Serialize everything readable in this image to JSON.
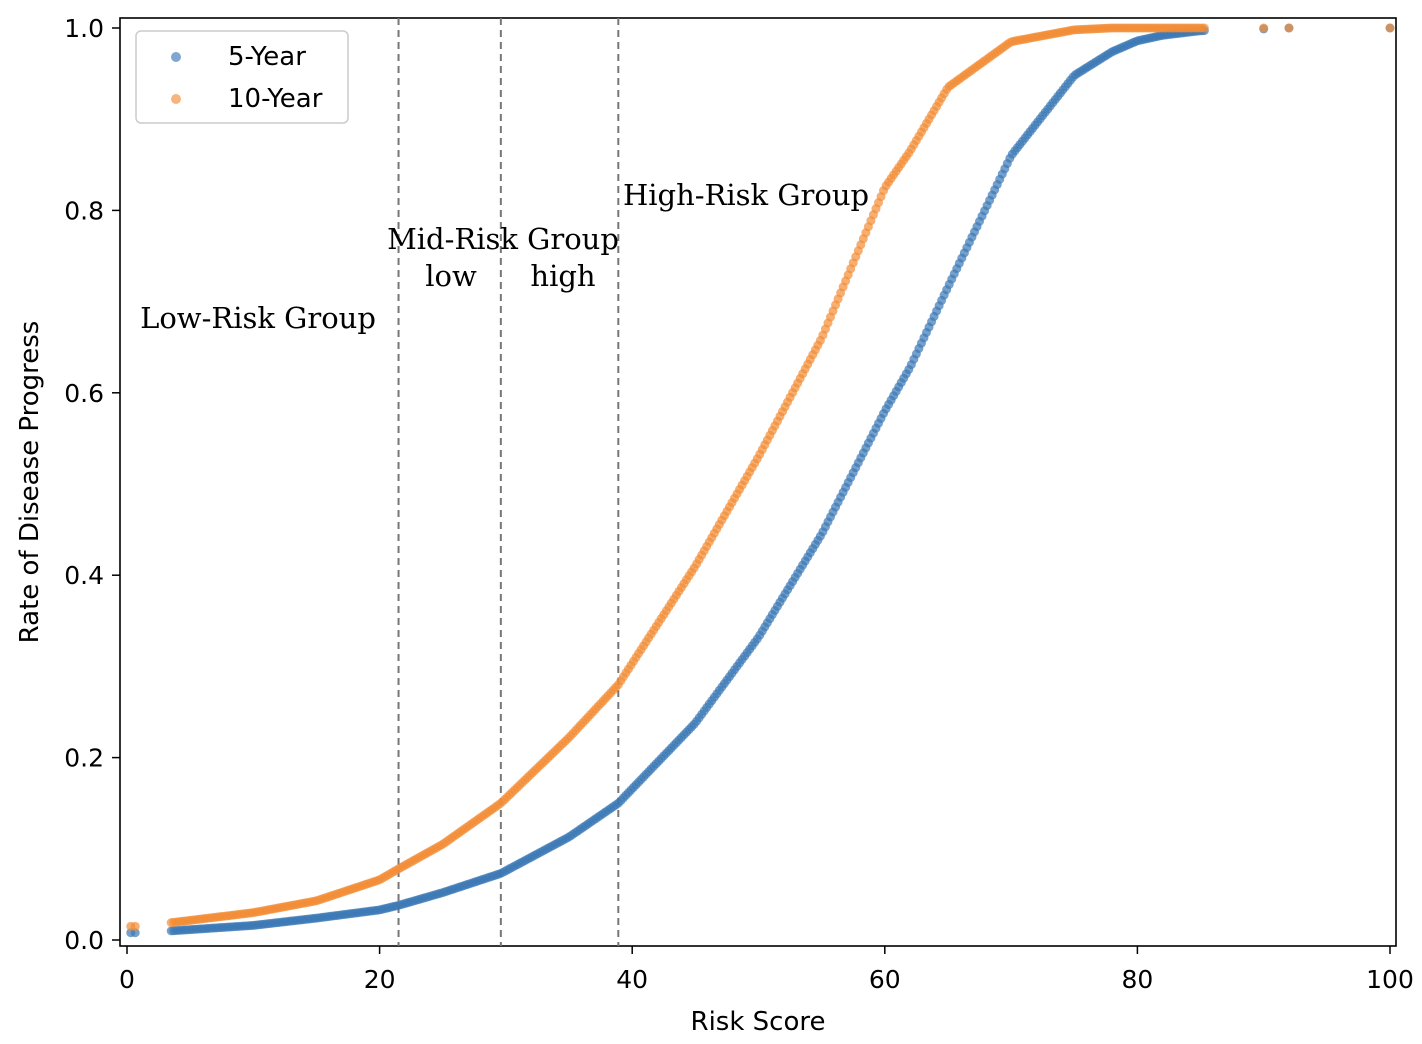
{
  "chart_data": {
    "type": "scatter",
    "title": "",
    "xlabel": "Risk Score",
    "ylabel": "Rate of Disease Progress",
    "xlim": [
      0,
      100
    ],
    "ylim": [
      0,
      1.0
    ],
    "xticks": [
      "0",
      "20",
      "40",
      "60",
      "80",
      "100"
    ],
    "yticks": [
      "0.0",
      "0.2",
      "0.4",
      "0.6",
      "0.8",
      "1.0"
    ],
    "grid": false,
    "legend_position": "top-left",
    "cutoffs": [
      21.5,
      29.6,
      38.9
    ],
    "annotations": {
      "low_risk": "Low-Risk Group",
      "mid_risk": "Mid-Risk Group",
      "mid_low": "low",
      "mid_high": "high",
      "high_risk": "High-Risk Group"
    },
    "series": [
      {
        "name": "5-Year",
        "color": "#3b78b5",
        "x": [
          0.3,
          3.5,
          10,
          15,
          20,
          21.5,
          25,
          29.6,
          35,
          38.9,
          45,
          50,
          55,
          60,
          62,
          65,
          70,
          75,
          78,
          80,
          82,
          85,
          90,
          92,
          100
        ],
        "values": [
          0.008,
          0.01,
          0.016,
          0.024,
          0.033,
          0.038,
          0.052,
          0.073,
          0.113,
          0.15,
          0.238,
          0.332,
          0.445,
          0.58,
          0.628,
          0.716,
          0.86,
          0.948,
          0.974,
          0.986,
          0.992,
          0.997,
          0.999,
          1.0,
          1.0
        ]
      },
      {
        "name": "10-Year",
        "color": "#f28c35",
        "x": [
          0.3,
          3.5,
          10,
          15,
          20,
          21.5,
          25,
          29.6,
          35,
          38.9,
          45,
          50,
          55,
          60,
          62,
          65,
          70,
          75,
          78,
          80,
          82,
          85,
          90,
          92,
          100
        ],
        "values": [
          0.015,
          0.019,
          0.03,
          0.043,
          0.066,
          0.078,
          0.105,
          0.15,
          0.222,
          0.28,
          0.41,
          0.53,
          0.66,
          0.825,
          0.865,
          0.935,
          0.985,
          0.998,
          1.0,
          1.0,
          1.0,
          1.0,
          1.0,
          1.0,
          1.0
        ]
      }
    ]
  }
}
